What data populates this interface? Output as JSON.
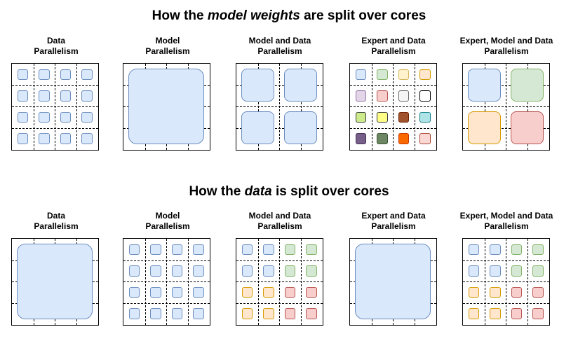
{
  "weights_section": {
    "title_before": "How the ",
    "title_emph": "model weights",
    "title_after": " are split over cores"
  },
  "data_section": {
    "title_before": "How the ",
    "title_emph": "data",
    "title_after": " is split over cores"
  },
  "panel_labels": {
    "data_parallelism": [
      "Data",
      "Parallelism"
    ],
    "model_parallelism": [
      "Model",
      "Parallelism"
    ],
    "model_and_data_parallelism": [
      "Model and Data",
      "Parallelism"
    ],
    "expert_and_data_parallelism": [
      "Expert and Data",
      "Parallelism"
    ],
    "expert_model_and_data_parallelism": [
      "Expert, Model and Data",
      "Parallelism"
    ]
  },
  "colors": {
    "blue_fill": "#dae8fc",
    "blue_stroke": "#6c8ebf",
    "green_fill": "#d5e8d4",
    "green_stroke": "#82b366",
    "orange_fill": "#ffe6cc",
    "orange_stroke": "#d79b00",
    "red_fill": "#f8cecc",
    "red_stroke": "#b85450",
    "yellow_fill": "#fff2cc",
    "yellow_stroke": "#d6b656",
    "purple_fill": "#e1d5e7",
    "purple_stroke": "#9673a6",
    "gray_fill": "#f5f5f5",
    "gray_stroke": "#666666",
    "white_fill": "#ffffff",
    "white_stroke": "#000000",
    "lime_fill": "#cdeb8b",
    "lime_stroke": "#36393d",
    "brightyellow_fill": "#ffff88",
    "brightyellow_stroke": "#36393d",
    "brown_fill": "#a0522d",
    "brown_stroke": "#6d1f00",
    "cyan_fill": "#b0e3e6",
    "cyan_stroke": "#0e8088",
    "darkpurple_fill": "#76608a",
    "darkpurple_stroke": "#432d57",
    "darkgreen_fill": "#6d8764",
    "darkgreen_stroke": "#3a5431",
    "brightorange_fill": "#fa6800",
    "brightorange_stroke": "#c73500",
    "pink_fill": "#fad9d5",
    "pink_stroke": "#ae4132"
  },
  "expert_palette": [
    "blue",
    "green",
    "yellow",
    "orange",
    "purple",
    "red",
    "gray",
    "white",
    "lime",
    "brightyellow",
    "brown",
    "cyan",
    "darkpurple",
    "darkgreen",
    "brightorange",
    "pink"
  ]
}
